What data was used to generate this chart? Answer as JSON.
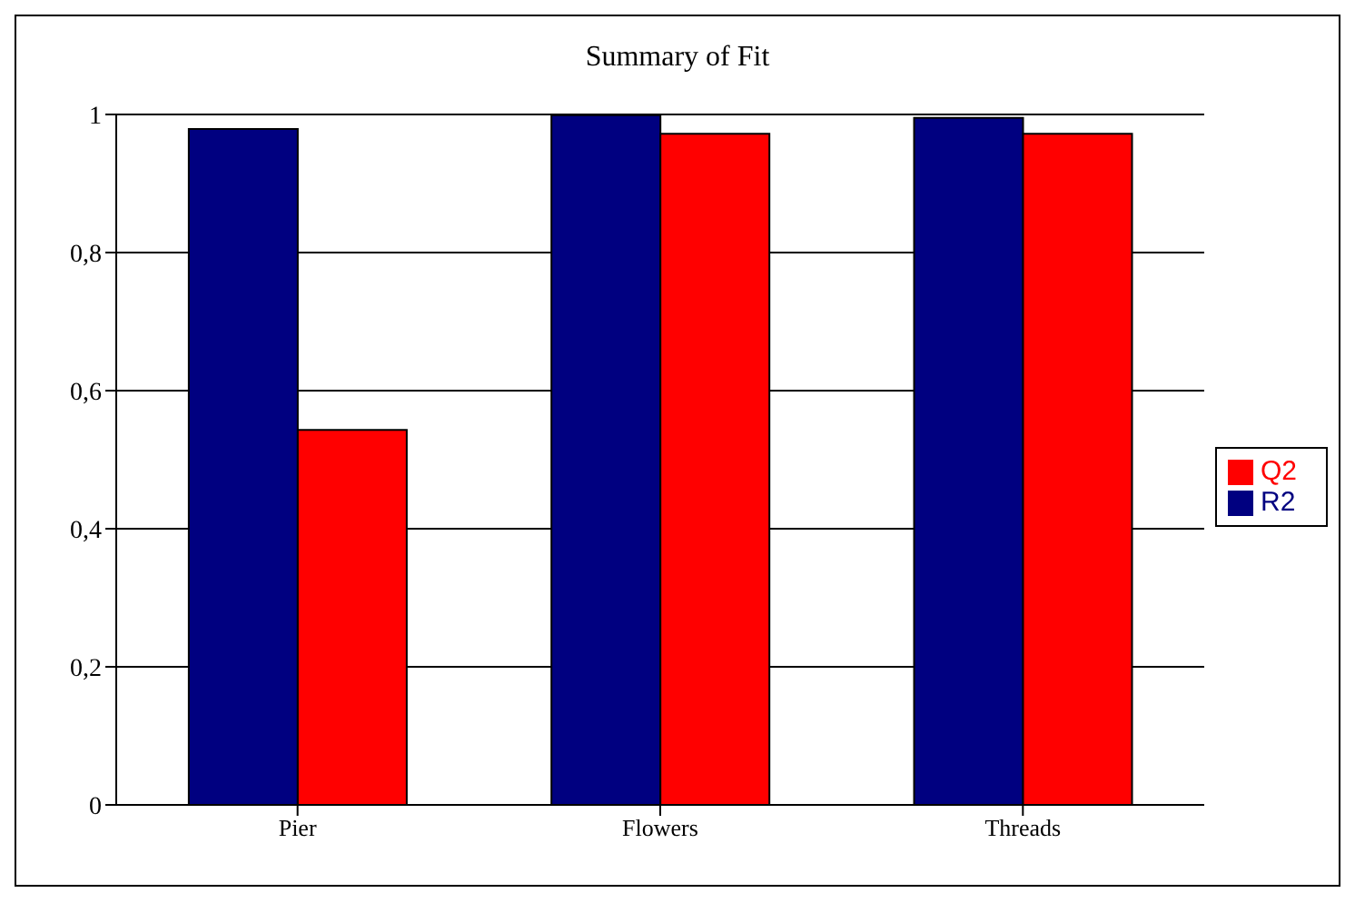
{
  "chart_data": {
    "type": "bar",
    "title": "Summary of Fit",
    "categories": [
      "Pier",
      "Flowers",
      "Threads"
    ],
    "series": [
      {
        "name": "R2",
        "color": "#000080",
        "values": [
          0.979,
          0.999,
          0.995
        ]
      },
      {
        "name": "Q2",
        "color": "#ff0000",
        "values": [
          0.543,
          0.972,
          0.972
        ]
      }
    ],
    "ylim": [
      0,
      1
    ],
    "yticks": [
      0,
      {
        "value": 0.2,
        "label": "0,2"
      },
      {
        "value": 0.4,
        "label": "0,4"
      },
      {
        "value": 0.6,
        "label": "0,6"
      },
      {
        "value": 0.8,
        "label": "0,8"
      },
      1
    ],
    "grid": "y",
    "legend": "right"
  }
}
